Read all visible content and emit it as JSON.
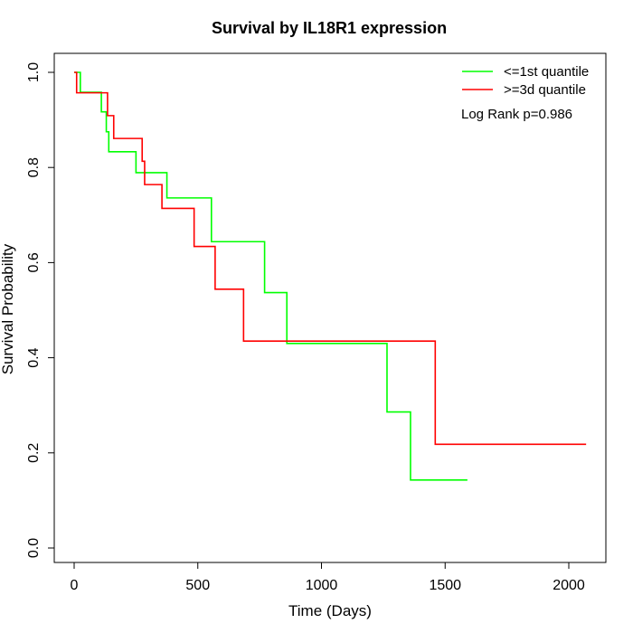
{
  "chart_data": {
    "type": "line",
    "title": "Survival by IL18R1 expression",
    "xlabel": "Time (Days)",
    "ylabel": "Survival Probability",
    "xlim": [
      0,
      2100
    ],
    "ylim": [
      0,
      1
    ],
    "x_ticks": [
      "0",
      "500",
      "1000",
      "1500",
      "2000"
    ],
    "y_ticks": [
      "0.0",
      "0.2",
      "0.4",
      "0.6",
      "0.8",
      "1.0"
    ],
    "grid": false,
    "legend_position": "top-right",
    "annotation": "Log Rank p=0.986",
    "series": [
      {
        "name": "<=1st quantile",
        "color": "#00ff00",
        "step": true,
        "x": [
          0,
          25,
          110,
          130,
          140,
          250,
          375,
          555,
          770,
          860,
          1265,
          1360,
          1590
        ],
        "y": [
          1.0,
          0.958,
          0.917,
          0.875,
          0.833,
          0.789,
          0.736,
          0.644,
          0.537,
          0.43,
          0.286,
          0.143,
          0.143
        ]
      },
      {
        "name": ">=3d quantile",
        "color": "#ff0000",
        "step": true,
        "x": [
          0,
          10,
          135,
          160,
          275,
          285,
          355,
          485,
          570,
          685,
          1460,
          2070
        ],
        "y": [
          1.0,
          0.957,
          0.909,
          0.861,
          0.813,
          0.764,
          0.714,
          0.634,
          0.544,
          0.435,
          0.218,
          0.218
        ]
      }
    ]
  }
}
